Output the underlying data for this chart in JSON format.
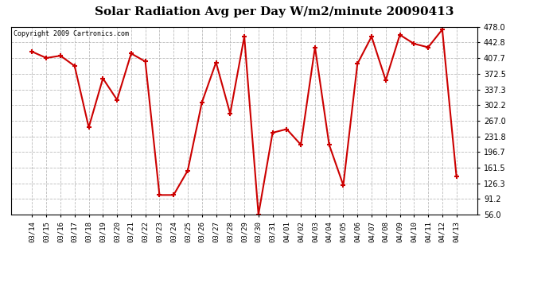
{
  "title": "Solar Radiation Avg per Day W/m2/minute 20090413",
  "copyright": "Copyright 2009 Cartronics.com",
  "labels": [
    "03/14",
    "03/15",
    "03/16",
    "03/17",
    "03/18",
    "03/19",
    "03/20",
    "03/21",
    "03/22",
    "03/23",
    "03/24",
    "03/25",
    "03/26",
    "03/27",
    "03/28",
    "03/29",
    "03/30",
    "03/31",
    "04/01",
    "04/02",
    "04/03",
    "04/04",
    "04/05",
    "04/06",
    "04/07",
    "04/08",
    "04/09",
    "04/10",
    "04/11",
    "04/12",
    "04/13"
  ],
  "values": [
    422,
    408,
    413,
    390,
    252,
    362,
    314,
    418,
    400,
    100,
    100,
    155,
    308,
    398,
    283,
    456,
    56,
    240,
    248,
    213,
    432,
    213,
    122,
    395,
    456,
    358,
    460,
    440,
    432,
    472,
    142
  ],
  "line_color": "#cc0000",
  "marker_color": "#cc0000",
  "bg_color": "#ffffff",
  "plot_bg_color": "#ffffff",
  "grid_color": "#bbbbbb",
  "title_fontsize": 11,
  "ymin": 56.0,
  "ymax": 478.0,
  "yticks": [
    56.0,
    91.2,
    126.3,
    161.5,
    196.7,
    231.8,
    267.0,
    302.2,
    337.3,
    372.5,
    407.7,
    442.8,
    478.0
  ]
}
